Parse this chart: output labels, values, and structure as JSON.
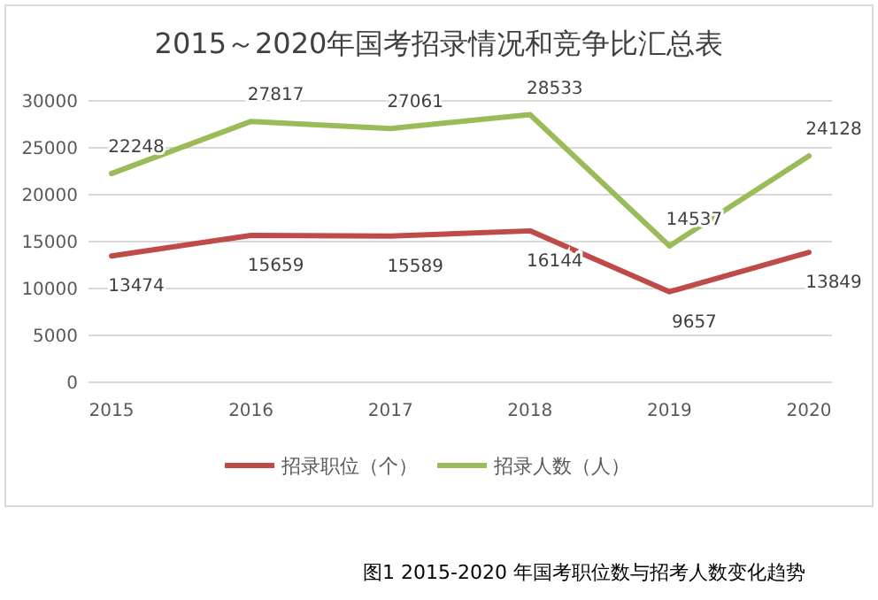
{
  "chart_data": {
    "type": "line",
    "title": "2015～2020年国考招录情况和竞争比汇总表",
    "categories": [
      "2015",
      "2016",
      "2017",
      "2018",
      "2019",
      "2020"
    ],
    "series": [
      {
        "name": "招录职位（个）",
        "color": "#be4b48",
        "values": [
          13474,
          15659,
          15589,
          16144,
          9657,
          13849
        ]
      },
      {
        "name": "招录人数（人）",
        "color": "#9bbb59",
        "values": [
          22248,
          27817,
          27061,
          28533,
          14537,
          24128
        ]
      }
    ],
    "ylim": [
      0,
      30000
    ],
    "yticks": [
      0,
      5000,
      10000,
      15000,
      20000,
      25000,
      30000
    ],
    "grid": "y",
    "legend": "bottom",
    "data_labels": true,
    "marker": "none",
    "line_style": "solid",
    "annotations": [
      "图1  2015-2020 年国考职位数与招考人数变化趋势"
    ]
  }
}
